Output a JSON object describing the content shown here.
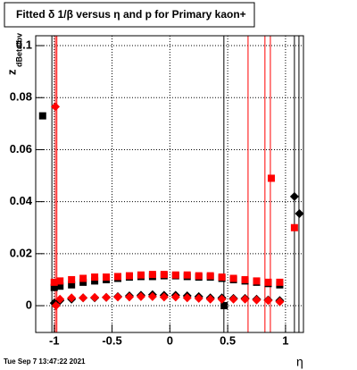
{
  "chart_data": {
    "type": "scatter",
    "title": "Fitted δ 1/β versus η and p for Primary kaon+",
    "y_label": "z",
    "y_label_sub": "dBeta/bv",
    "x_label": "η",
    "footer": "Tue Sep  7 13:47:22 2021",
    "xlim": [
      -1.16,
      1.155
    ],
    "ylim": [
      -0.0103,
      0.1038
    ],
    "xticks": [
      -1,
      -0.5,
      0,
      0.5,
      1
    ],
    "yticks": [
      0,
      0.02,
      0.04,
      0.06,
      0.08,
      0.1
    ],
    "grid": true,
    "vertical_lines": [
      {
        "x": -1.02,
        "color": "#000000"
      },
      {
        "x": -0.99,
        "color": "#ff0000"
      },
      {
        "x": -0.977,
        "color": "#ff0000"
      },
      {
        "x": 0.467,
        "color": "#000000"
      },
      {
        "x": 0.676,
        "color": "#ff0000"
      },
      {
        "x": 0.822,
        "color": "#ff0000"
      },
      {
        "x": 0.869,
        "color": "#ff0000"
      },
      {
        "x": 1.077,
        "color": "#000000"
      },
      {
        "x": 1.116,
        "color": "#000000"
      }
    ],
    "series": [
      {
        "name": "black squares",
        "color": "#000000",
        "marker": "square",
        "x": [
          -1.1,
          -1.0,
          -0.95,
          -0.85,
          -0.75,
          -0.65,
          -0.55,
          -0.45,
          -0.35,
          -0.25,
          -0.15,
          -0.05,
          0.05,
          0.15,
          0.25,
          0.35,
          0.45,
          0.47,
          0.55,
          0.65,
          0.75,
          0.85,
          0.95
        ],
        "values": [
          0.073,
          0.007,
          0.0075,
          0.008,
          0.009,
          0.0095,
          0.01,
          0.0105,
          0.011,
          0.0112,
          0.0112,
          0.0115,
          0.0115,
          0.0112,
          0.011,
          0.011,
          0.0105,
          0.0,
          0.01,
          0.0095,
          0.009,
          0.0085,
          0.008
        ]
      },
      {
        "name": "red squares",
        "color": "#ff0000",
        "marker": "square",
        "x": [
          -1.0,
          -0.95,
          -0.85,
          -0.75,
          -0.65,
          -0.55,
          -0.45,
          -0.35,
          -0.25,
          -0.15,
          -0.05,
          0.05,
          0.15,
          0.25,
          0.35,
          0.45,
          0.55,
          0.65,
          0.75,
          0.85,
          0.95,
          0.877,
          1.077
        ],
        "values": [
          0.009,
          0.0095,
          0.01,
          0.0105,
          0.011,
          0.011,
          0.0112,
          0.0115,
          0.0118,
          0.012,
          0.012,
          0.0118,
          0.0118,
          0.0115,
          0.0115,
          0.011,
          0.0105,
          0.01,
          0.0095,
          0.009,
          0.009,
          0.049,
          0.03
        ]
      },
      {
        "name": "black diamonds",
        "color": "#000000",
        "marker": "diamond",
        "x": [
          -1.0,
          -0.95,
          -0.85,
          -0.75,
          -0.65,
          -0.55,
          -0.45,
          -0.35,
          -0.25,
          -0.15,
          -0.05,
          0.05,
          0.15,
          0.25,
          0.35,
          0.45,
          0.55,
          0.65,
          0.75,
          0.85,
          0.95,
          1.077,
          1.12
        ],
        "values": [
          0.001,
          0.002,
          0.0025,
          0.003,
          0.003,
          0.0032,
          0.0035,
          0.0038,
          0.004,
          0.0042,
          0.004,
          0.004,
          0.0038,
          0.0035,
          0.003,
          0.003,
          0.0028,
          0.0028,
          0.0025,
          0.0022,
          0.002,
          0.042,
          0.0354
        ]
      },
      {
        "name": "red diamonds",
        "color": "#ff0000",
        "marker": "diamond",
        "x": [
          -0.99,
          -0.985,
          -0.95,
          -0.85,
          -0.75,
          -0.65,
          -0.55,
          -0.45,
          -0.35,
          -0.25,
          -0.15,
          -0.05,
          0.05,
          0.15,
          0.25,
          0.35,
          0.45,
          0.55,
          0.65,
          0.75,
          0.85,
          0.95
        ],
        "values": [
          0.0765,
          0.0,
          0.0025,
          0.003,
          0.003,
          0.0032,
          0.0032,
          0.0033,
          0.0033,
          0.0035,
          0.0035,
          0.0033,
          0.0033,
          0.003,
          0.0028,
          0.0025,
          0.0025,
          0.0025,
          0.0025,
          0.0022,
          0.002,
          0.0015
        ]
      }
    ]
  }
}
